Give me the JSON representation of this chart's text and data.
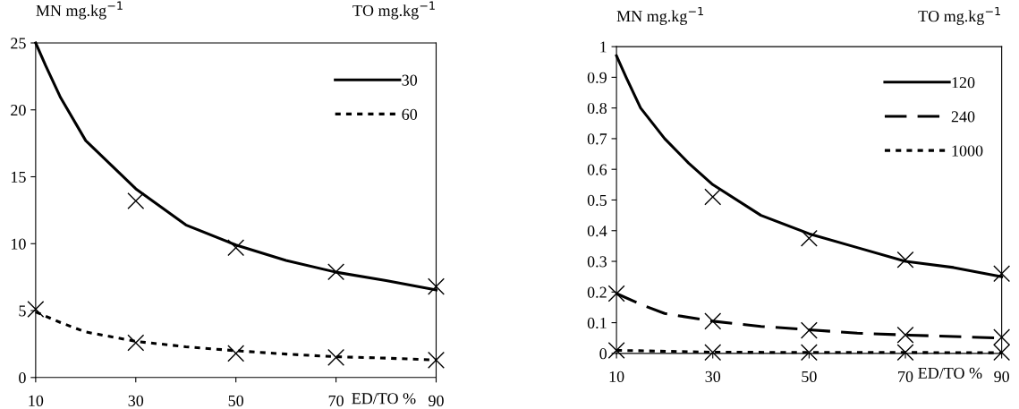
{
  "chart_data": [
    {
      "type": "line",
      "ylabel": "MN mg.kg$^{−1}$",
      "legend_title": "TO mg.kg$^{−1}$",
      "xlabel": "ED/TO %",
      "xlim": [
        10,
        90
      ],
      "xticks": [
        10,
        30,
        50,
        70,
        90
      ],
      "ylim": [
        0,
        25
      ],
      "yticks": [
        0,
        5,
        10,
        15,
        20,
        25
      ],
      "grid": false,
      "legend": "top right",
      "series": [
        {
          "name": "30",
          "color": "#000000",
          "line_style": "solid",
          "x": [
            10,
            12,
            15,
            20,
            30,
            40,
            50,
            60,
            70,
            80,
            90
          ],
          "values": [
            25,
            23.3,
            20.9,
            17.7,
            14.1,
            11.4,
            9.9,
            8.75,
            7.87,
            7.24,
            6.55
          ]
        },
        {
          "name": "60",
          "color": "#000000",
          "line_style": "dotted",
          "x": [
            10,
            15,
            20,
            30,
            40,
            50,
            60,
            70,
            80,
            90
          ],
          "values": [
            4.9,
            4.1,
            3.4,
            2.7,
            2.3,
            2.0,
            1.75,
            1.55,
            1.45,
            1.3
          ]
        },
        {
          "type": "scatter",
          "marker": "cross",
          "color": "#000000",
          "x": [
            30,
            50,
            70,
            90
          ],
          "values": [
            13.2,
            9.7,
            7.9,
            6.8
          ]
        },
        {
          "type": "scatter",
          "marker": "cross",
          "color": "#000000",
          "x": [
            10,
            30,
            50,
            70,
            90
          ],
          "values": [
            5.1,
            2.6,
            1.8,
            1.5,
            1.3
          ]
        }
      ]
    },
    {
      "type": "line",
      "ylabel": "MN mg.kg$^{−1}$",
      "legend_title": "TO mg.kg$^{−1}$",
      "xlabel": "ED/TO %",
      "xlim": [
        10,
        90
      ],
      "xticks": [
        10,
        30,
        50,
        70,
        90
      ],
      "ylim": [
        0,
        1
      ],
      "yticks": [
        0,
        0.1,
        0.2,
        0.3,
        0.4,
        0.5,
        0.6,
        0.7,
        0.8,
        0.9,
        1
      ],
      "grid": false,
      "legend": "top right",
      "series": [
        {
          "name": "120",
          "color": "#000000",
          "line_style": "solid",
          "x": [
            10,
            12,
            15,
            20,
            25,
            30,
            40,
            50,
            60,
            70,
            80,
            90
          ],
          "values": [
            0.97,
            0.9,
            0.8,
            0.7,
            0.62,
            0.55,
            0.45,
            0.39,
            0.345,
            0.3,
            0.28,
            0.25
          ]
        },
        {
          "name": "240",
          "color": "#000000",
          "line_style": "dashed",
          "x": [
            10,
            15,
            20,
            30,
            40,
            50,
            60,
            70,
            80,
            90
          ],
          "values": [
            0.195,
            0.16,
            0.13,
            0.105,
            0.088,
            0.077,
            0.066,
            0.06,
            0.055,
            0.05
          ]
        },
        {
          "name": "1000",
          "color": "#000000",
          "line_style": "dotted",
          "x": [
            10,
            30,
            50,
            70,
            90
          ],
          "values": [
            0.01,
            0.004,
            0.003,
            0.003,
            0.002
          ]
        },
        {
          "type": "scatter",
          "marker": "cross",
          "color": "#000000",
          "x": [
            30,
            50,
            70,
            90
          ],
          "values": [
            0.51,
            0.375,
            0.305,
            0.26
          ]
        },
        {
          "type": "scatter",
          "marker": "cross",
          "color": "#000000",
          "x": [
            10,
            30,
            50,
            70,
            90
          ],
          "values": [
            0.195,
            0.105,
            0.075,
            0.06,
            0.053
          ]
        },
        {
          "type": "scatter",
          "marker": "cross",
          "color": "#000000",
          "x": [
            10,
            30,
            50,
            70,
            90
          ],
          "values": [
            0.01,
            0.003,
            0.003,
            0.003,
            0.003
          ]
        }
      ]
    }
  ]
}
